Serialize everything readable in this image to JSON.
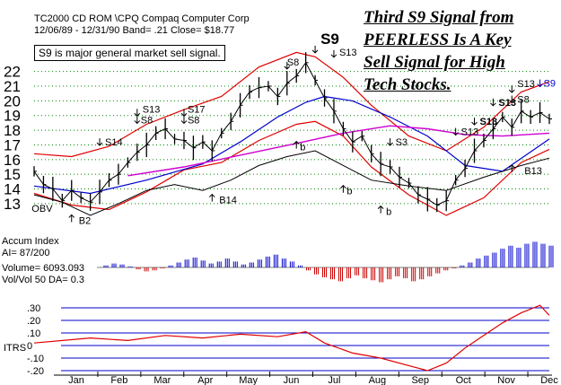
{
  "header": {
    "ticker_line": "TC2000 CD ROM \\CPQ  Compaq Computer Corp",
    "range_line": "12/06/89 - 12/31/90  Band= .21  Close= $18.77",
    "note_box": "S9 is major general market sell signal."
  },
  "callout": {
    "lines": [
      "Third S9 Signal from",
      "PEERLESS Is A Key",
      "Sell Signal for High",
      "Tech Stocks."
    ]
  },
  "indicator_labels": {
    "accum_title": "Accum Index",
    "ai_line": "AI= 87/200",
    "volume_line": "Volume= 6093.093",
    "volvol_line": "Vol/Vol 50 DA= 0.3",
    "itrs_label": "ITRS"
  },
  "colors": {
    "price": "#000000",
    "upper_band": "#e00000",
    "lower_band": "#e00000",
    "ma_blue": "#0000cc",
    "ma_magenta": "#d000d0",
    "obv": "#000000",
    "accum_positive": "#0000cc",
    "accum_negative": "#cc0000",
    "itrs_line": "#e00000",
    "grid_green": "#008800",
    "ref_blue": "#0000cc"
  },
  "chart_data": {
    "type": "line",
    "title": "TC2000 CD ROM \\CPQ Compaq Computer Corp",
    "price_axis": {
      "ticks": [
        13,
        14,
        15,
        16,
        17,
        18,
        19,
        20,
        21,
        22
      ],
      "ylim": [
        12.2,
        23.2
      ]
    },
    "months": [
      "Jan",
      "Feb",
      "Mar",
      "Apr",
      "May",
      "Jun",
      "Jul",
      "Aug",
      "Sep",
      "Oct",
      "Nov",
      "Dec"
    ],
    "price": [
      [
        0,
        15.2
      ],
      [
        1,
        14.3
      ],
      [
        2,
        14.0
      ],
      [
        3,
        13.2
      ],
      [
        4,
        13.9
      ],
      [
        5,
        13.4
      ],
      [
        6,
        13.1
      ],
      [
        7,
        13.8
      ],
      [
        8,
        14.6
      ],
      [
        9,
        15.0
      ],
      [
        10,
        15.8
      ],
      [
        11,
        16.5
      ],
      [
        12,
        17.0
      ],
      [
        13,
        17.8
      ],
      [
        14,
        18.1
      ],
      [
        15,
        17.4
      ],
      [
        16,
        17.3
      ],
      [
        17,
        16.8
      ],
      [
        18,
        17.2
      ],
      [
        19,
        16.6
      ],
      [
        20,
        17.8
      ],
      [
        21,
        18.6
      ],
      [
        22,
        19.7
      ],
      [
        23,
        20.6
      ],
      [
        24,
        20.9
      ],
      [
        25,
        21.0
      ],
      [
        26,
        20.3
      ],
      [
        27,
        21.2
      ],
      [
        28,
        21.7
      ],
      [
        29,
        22.6
      ],
      [
        30,
        21.4
      ],
      [
        31,
        20.2
      ],
      [
        32,
        19.3
      ],
      [
        33,
        18.1
      ],
      [
        34,
        17.2
      ],
      [
        35,
        17.6
      ],
      [
        36,
        16.4
      ],
      [
        37,
        15.7
      ],
      [
        38,
        15.5
      ],
      [
        39,
        14.8
      ],
      [
        40,
        14.4
      ],
      [
        41,
        13.6
      ],
      [
        42,
        13.3
      ],
      [
        43,
        12.9
      ],
      [
        44,
        13.2
      ],
      [
        45,
        14.6
      ],
      [
        46,
        15.4
      ],
      [
        47,
        16.6
      ],
      [
        48,
        17.3
      ],
      [
        49,
        18.1
      ],
      [
        50,
        18.9
      ],
      [
        51,
        18.2
      ],
      [
        52,
        19.3
      ],
      [
        53,
        18.9
      ],
      [
        54,
        19.2
      ],
      [
        55,
        18.77
      ]
    ],
    "upper_band": [
      [
        0,
        16.4
      ],
      [
        4,
        16.2
      ],
      [
        8,
        16.9
      ],
      [
        12,
        18.4
      ],
      [
        16,
        19.4
      ],
      [
        20,
        20.3
      ],
      [
        24,
        22.3
      ],
      [
        28,
        23.3
      ],
      [
        30,
        23.0
      ],
      [
        33,
        21.6
      ],
      [
        36,
        19.7
      ],
      [
        40,
        17.6
      ],
      [
        44,
        16.6
      ],
      [
        48,
        18.2
      ],
      [
        52,
        20.6
      ],
      [
        55,
        21.3
      ]
    ],
    "lower_band": [
      [
        0,
        13.7
      ],
      [
        4,
        12.9
      ],
      [
        8,
        12.6
      ],
      [
        12,
        13.8
      ],
      [
        16,
        15.3
      ],
      [
        20,
        15.8
      ],
      [
        24,
        17.3
      ],
      [
        28,
        18.4
      ],
      [
        30,
        18.6
      ],
      [
        33,
        17.6
      ],
      [
        36,
        15.5
      ],
      [
        40,
        13.6
      ],
      [
        44,
        12.2
      ],
      [
        48,
        13.4
      ],
      [
        52,
        15.8
      ],
      [
        55,
        16.7
      ]
    ],
    "ma_blue": [
      [
        0,
        14.2
      ],
      [
        6,
        13.7
      ],
      [
        12,
        14.6
      ],
      [
        18,
        15.7
      ],
      [
        22,
        17.2
      ],
      [
        26,
        18.9
      ],
      [
        29,
        19.9
      ],
      [
        31,
        20.3
      ],
      [
        34,
        20.0
      ],
      [
        38,
        18.9
      ],
      [
        42,
        17.6
      ],
      [
        46,
        15.6
      ],
      [
        50,
        15.2
      ],
      [
        55,
        17.4
      ]
    ],
    "ma_magenta": [
      [
        10,
        14.9
      ],
      [
        16,
        15.5
      ],
      [
        22,
        16.3
      ],
      [
        28,
        17.1
      ],
      [
        33,
        17.8
      ],
      [
        38,
        18.3
      ],
      [
        42,
        18.1
      ],
      [
        46,
        17.7
      ],
      [
        50,
        17.6
      ],
      [
        55,
        17.8
      ]
    ],
    "obv": [
      [
        0,
        13.6
      ],
      [
        3,
        13.1
      ],
      [
        6,
        12.2
      ],
      [
        9,
        13.0
      ],
      [
        12,
        13.9
      ],
      [
        15,
        14.3
      ],
      [
        18,
        13.9
      ],
      [
        21,
        14.6
      ],
      [
        24,
        15.6
      ],
      [
        27,
        16.2
      ],
      [
        30,
        16.6
      ],
      [
        33,
        15.6
      ],
      [
        36,
        14.6
      ],
      [
        40,
        14.2
      ],
      [
        44,
        13.9
      ],
      [
        48,
        14.8
      ],
      [
        52,
        15.6
      ],
      [
        55,
        16.1
      ]
    ],
    "signals": [
      {
        "label": "S9",
        "i": 30,
        "p": 22.9,
        "big": true,
        "color": "#000000",
        "dx": 6,
        "dy": -10
      },
      {
        "label": "S13",
        "i": 32,
        "p": 22.6,
        "color": "#000000",
        "dx": 6,
        "dy": -2
      },
      {
        "label": "S8",
        "i": 27,
        "p": 21.8,
        "color": "#000000",
        "dx": 0,
        "dy": -4
      },
      {
        "label": "S13",
        "i": 11,
        "p": 18.6,
        "color": "#000000",
        "dx": 6,
        "dy": -4
      },
      {
        "label": "S8",
        "i": 11,
        "p": 18.1,
        "color": "#000000",
        "dx": 4,
        "dy": 0
      },
      {
        "label": "S17",
        "i": 16,
        "p": 18.6,
        "color": "#000000",
        "dx": 4,
        "dy": -4
      },
      {
        "label": "S8",
        "i": 16,
        "p": 18.1,
        "color": "#000000",
        "dx": 4,
        "dy": 0
      },
      {
        "label": "S14",
        "i": 7,
        "p": 16.6,
        "color": "#000000",
        "dx": 6,
        "dy": 0
      },
      {
        "label": "S3",
        "i": 38,
        "p": 16.6,
        "color": "#000000",
        "dx": 6,
        "dy": 0
      },
      {
        "label": "S13",
        "i": 45,
        "p": 17.3,
        "color": "#000000",
        "dx": 6,
        "dy": 0
      },
      {
        "label": "S13",
        "i": 47,
        "p": 18.0,
        "color": "#000000",
        "dx": 6,
        "dy": 0,
        "bold": true
      },
      {
        "label": "S13",
        "i": 49,
        "p": 19.3,
        "color": "#000000",
        "dx": 6,
        "dy": 0,
        "bold": true
      },
      {
        "label": "S8",
        "i": 51,
        "p": 19.5,
        "color": "#000000",
        "dx": 6,
        "dy": 0
      },
      {
        "label": "S13",
        "i": 51,
        "p": 20.2,
        "color": "#000000",
        "dx": 6,
        "dy": -6
      },
      {
        "label": "S9",
        "i": 54,
        "p": 20.6,
        "color": "#0000cc",
        "dx": 4,
        "dy": 0
      },
      {
        "label": "B14",
        "i": 19,
        "p": 14.0,
        "color": "#000000",
        "dx": 8,
        "dy": 0
      },
      {
        "label": "B13",
        "i": 51,
        "p": 16.0,
        "color": "#000000",
        "dx": 14,
        "dy": 0
      },
      {
        "label": "B2",
        "i": 4,
        "p": 12.6,
        "color": "#000000",
        "dx": 8,
        "dy": 0
      },
      {
        "label": "b",
        "i": 28,
        "p": 17.6,
        "color": "#000000",
        "dx": 4,
        "dy": 0
      },
      {
        "label": "b",
        "i": 37,
        "p": 13.2,
        "color": "#000000",
        "dx": 6,
        "dy": 0
      },
      {
        "label": "b",
        "i": 33,
        "p": 14.6,
        "color": "#000000",
        "dx": 4,
        "dy": 0
      }
    ],
    "obv_label": "OBV",
    "accum_index": [
      2,
      4,
      3,
      1,
      -2,
      -4,
      -3,
      -1,
      2,
      5,
      8,
      10,
      7,
      4,
      6,
      9,
      6,
      3,
      5,
      8,
      11,
      13,
      9,
      6,
      2,
      -3,
      -7,
      -10,
      -12,
      -14,
      -11,
      -8,
      -11,
      -13,
      -15,
      -12,
      -9,
      -11,
      -14,
      -12,
      -9,
      -6,
      -3,
      -1,
      2,
      5,
      9,
      12,
      15,
      19,
      22,
      20,
      24,
      26,
      24,
      22
    ],
    "itrs": {
      "ticks": [
        ".30",
        ".20",
        ".10",
        "0",
        "-.10",
        "-.20"
      ],
      "tick_values": [
        0.3,
        0.2,
        0.1,
        0.0,
        -0.1,
        -0.2
      ],
      "values": [
        [
          0,
          0.02
        ],
        [
          6,
          0.06
        ],
        [
          10,
          0.04
        ],
        [
          14,
          0.08
        ],
        [
          18,
          0.06
        ],
        [
          22,
          0.09
        ],
        [
          26,
          0.07
        ],
        [
          29,
          0.11
        ],
        [
          31,
          0.02
        ],
        [
          34,
          -0.06
        ],
        [
          37,
          -0.1
        ],
        [
          40,
          -0.16
        ],
        [
          42,
          -0.2
        ],
        [
          44,
          -0.14
        ],
        [
          46,
          -0.02
        ],
        [
          48,
          0.08
        ],
        [
          50,
          0.18
        ],
        [
          52,
          0.26
        ],
        [
          54,
          0.32
        ],
        [
          55,
          0.24
        ]
      ]
    }
  }
}
